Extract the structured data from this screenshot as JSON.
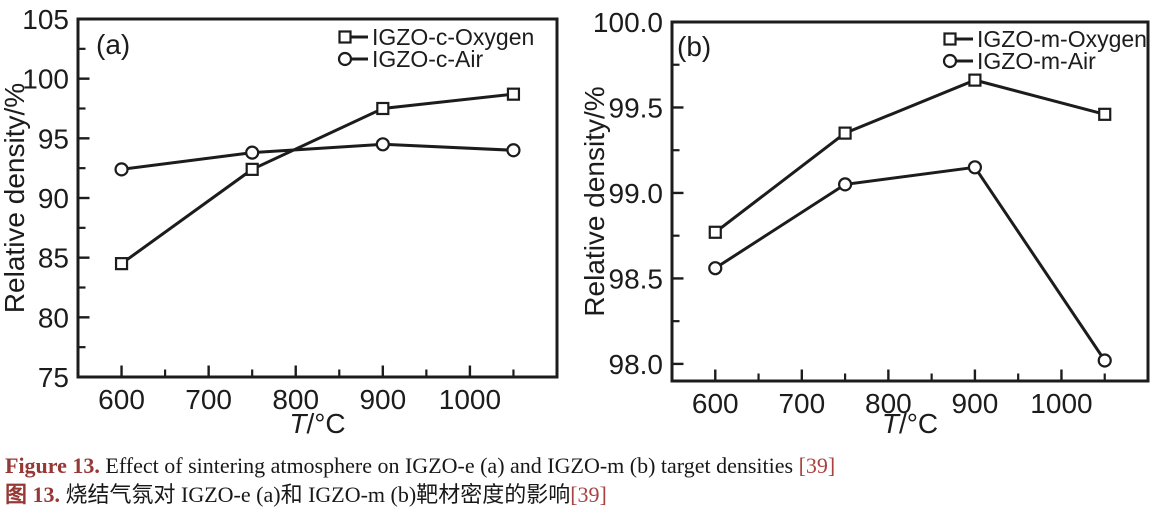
{
  "figure": {
    "caption_en": {
      "label": "Figure 13.",
      "text": " Effect of sintering atmosphere on IGZO-e (a) and IGZO-m (b) target densities ",
      "ref": "[39]"
    },
    "caption_zh": {
      "label": "图 13.",
      "text": " 烧结气氛对 IGZO-e (a)和 IGZO-m (b)靶材密度的影响",
      "ref": "[39]"
    }
  },
  "colors": {
    "ink": "#1c1c1c",
    "marker_fill": "#ffffff",
    "caption_label": "#963835",
    "caption_ref": "#a84340",
    "background": "#ffffff"
  },
  "chart_data": [
    {
      "type": "line",
      "panel_label": "(a)",
      "xlabel": "T/°C",
      "xlabel_italic_part": "T",
      "xlabel_rest": "/°C",
      "ylabel": "Relative density/%",
      "x": [
        600,
        750,
        900,
        1050
      ],
      "series": [
        {
          "name": "IGZO-c-Oxygen",
          "marker": "square",
          "values": [
            84.5,
            92.4,
            97.5,
            98.7
          ]
        },
        {
          "name": "IGZO-c-Air",
          "marker": "circle",
          "values": [
            92.4,
            93.8,
            94.5,
            94.0
          ]
        }
      ],
      "xlim": [
        550,
        1100
      ],
      "ylim": [
        75,
        105
      ],
      "xticks": [
        600,
        700,
        800,
        900,
        1000
      ],
      "xtick_labels": [
        "600",
        "700",
        "800",
        "900",
        "1000"
      ],
      "xminorticks": [
        650,
        750,
        850,
        950,
        1050
      ],
      "yticks": [
        75,
        80,
        85,
        90,
        95,
        100,
        105
      ],
      "ytick_labels": [
        "75",
        "80",
        "85",
        "90",
        "95",
        "100",
        "105"
      ],
      "yminorticks": [
        77.5,
        82.5,
        87.5,
        92.5,
        97.5,
        102.5
      ],
      "grid": false,
      "legend_position": "top-right"
    },
    {
      "type": "line",
      "panel_label": "(b)",
      "xlabel": "T/°C",
      "xlabel_italic_part": "T",
      "xlabel_rest": "/°C",
      "ylabel": "Relative density/%",
      "x": [
        600,
        750,
        900,
        1050
      ],
      "series": [
        {
          "name": "IGZO-m-Oxygen",
          "marker": "square",
          "values": [
            98.77,
            99.35,
            99.66,
            99.46
          ]
        },
        {
          "name": "IGZO-m-Air",
          "marker": "circle",
          "values": [
            98.56,
            99.05,
            99.15,
            98.02
          ]
        }
      ],
      "xlim": [
        550,
        1100
      ],
      "ylim": [
        97.9,
        100.0
      ],
      "xticks": [
        600,
        700,
        800,
        900,
        1000
      ],
      "xtick_labels": [
        "600",
        "700",
        "800",
        "900",
        "1000"
      ],
      "xminorticks": [
        650,
        750,
        850,
        950,
        1050
      ],
      "yticks": [
        98.0,
        98.5,
        99.0,
        99.5,
        100.0
      ],
      "ytick_labels": [
        "98.0",
        "98.5",
        "99.0",
        "99.5",
        "100.0"
      ],
      "yminorticks": [
        98.25,
        98.75,
        99.25,
        99.75
      ],
      "grid": false,
      "legend_position": "top-right"
    }
  ]
}
